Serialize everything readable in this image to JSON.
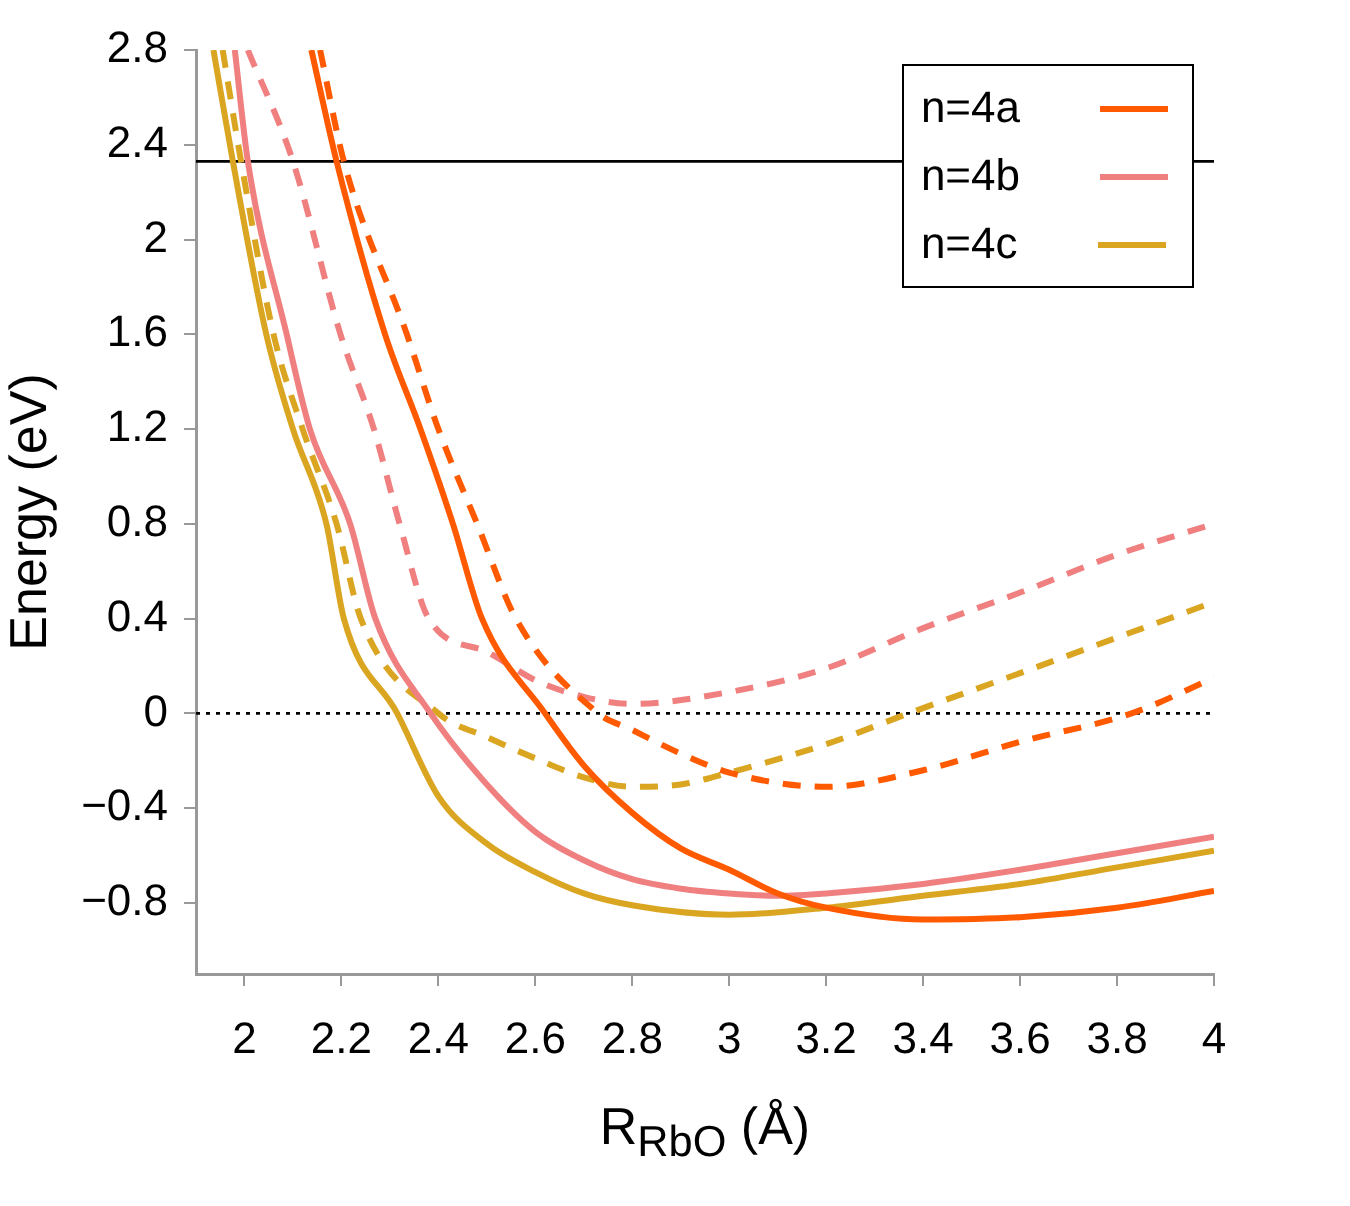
{
  "chart_data": {
    "type": "line",
    "xlabel": "R$_{RbO}$ (Å)",
    "ylabel": "Energy (eV)",
    "xlim": [
      1.9,
      4
    ],
    "xticks": [
      2,
      2.2,
      2.4,
      2.6,
      2.8,
      3,
      3.2,
      3.4,
      3.6,
      3.8,
      4
    ],
    "ylim": [
      -1.1,
      2.8
    ],
    "yticks": [
      {
        "value": -0.8,
        "label": "−0.8"
      },
      {
        "value": -0.4,
        "label": "−0.4"
      },
      0,
      0.4,
      0.8,
      1.2,
      1.6,
      2,
      2.4,
      2.8
    ],
    "legend": "top right",
    "marker": "none",
    "ref_lines": [
      {
        "axis": "y",
        "value": 2.33,
        "color": "#000000",
        "line_style": "solid"
      },
      {
        "axis": "y",
        "value": 0,
        "color": "#000000",
        "line_style": "dotted"
      }
    ],
    "series": [
      {
        "name": "n=4a",
        "color": "#ff5a00",
        "line_style": "solid",
        "x": [
          2.138,
          2.19,
          2.29,
          2.363,
          2.43,
          2.49,
          2.62,
          2.7,
          2.8,
          2.9,
          3.0,
          3.1,
          3.2,
          3.4,
          3.6,
          3.8,
          4.0
        ],
        "values": [
          2.8,
          2.33,
          1.6,
          1.2,
          0.8,
          0.4,
          0,
          -0.22,
          -0.42,
          -0.57,
          -0.66,
          -0.76,
          -0.82,
          -0.87,
          -0.86,
          -0.82,
          -0.75
        ]
      },
      {
        "name": "n=4b",
        "color": "#f08080",
        "line_style": "solid",
        "x": [
          1.98,
          2.007,
          2.087,
          2.135,
          2.218,
          2.27,
          2.384,
          2.5,
          2.6,
          2.7,
          2.8,
          2.9,
          3.0,
          3.1,
          3.2,
          3.4,
          3.6,
          3.8,
          4.0
        ],
        "values": [
          2.8,
          2.33,
          1.6,
          1.2,
          0.8,
          0.4,
          0,
          -0.3,
          -0.5,
          -0.62,
          -0.7,
          -0.74,
          -0.76,
          -0.77,
          -0.76,
          -0.72,
          -0.66,
          -0.59,
          -0.52
        ]
      },
      {
        "name": "n=4c",
        "color": "#daa520",
        "line_style": "solid",
        "x": [
          1.936,
          1.976,
          2.045,
          2.1,
          2.169,
          2.205,
          2.315,
          2.4,
          2.5,
          2.6,
          2.7,
          2.8,
          3.0,
          3.2,
          3.4,
          3.6,
          3.8,
          4.0
        ],
        "values": [
          2.8,
          2.33,
          1.6,
          1.2,
          0.8,
          0.4,
          0,
          -0.35,
          -0.55,
          -0.67,
          -0.76,
          -0.81,
          -0.85,
          -0.82,
          -0.77,
          -0.72,
          -0.65,
          -0.58
        ]
      },
      {
        "color": "#ff5a00",
        "line_style": "dashed",
        "x": [
          2.156,
          2.205,
          2.335,
          2.4,
          2.48,
          2.56,
          2.73,
          2.8,
          2.9,
          3.0,
          3.2,
          3.4,
          3.6,
          3.83,
          4.0
        ],
        "values": [
          2.8,
          2.33,
          1.6,
          1.2,
          0.8,
          0.4,
          0,
          -0.07,
          -0.17,
          -0.25,
          -0.31,
          -0.24,
          -0.12,
          0,
          0.15
        ]
      },
      {
        "color": "#f08080",
        "line_style": "dashed",
        "x": [
          2.007,
          2.1,
          2.198,
          2.267,
          2.32,
          2.38,
          2.5,
          2.6,
          2.7,
          2.8,
          3.0,
          3.2,
          3.4,
          3.6,
          3.8,
          4.0
        ],
        "values": [
          2.8,
          2.33,
          1.6,
          1.2,
          0.8,
          0.4,
          0.26,
          0.14,
          0.07,
          0.04,
          0.09,
          0.19,
          0.36,
          0.51,
          0.67,
          0.8
        ]
      },
      {
        "color": "#daa520",
        "line_style": "dashed",
        "x": [
          1.955,
          1.993,
          2.06,
          2.12,
          2.19,
          2.24,
          2.4,
          2.5,
          2.6,
          2.7,
          2.8,
          2.9,
          3.0,
          3.2,
          3.37,
          3.6,
          3.8,
          4.0
        ],
        "values": [
          2.8,
          2.33,
          1.6,
          1.2,
          0.8,
          0.4,
          0,
          -0.1,
          -0.19,
          -0.27,
          -0.31,
          -0.3,
          -0.25,
          -0.13,
          0,
          0.17,
          0.32,
          0.47
        ]
      }
    ]
  }
}
